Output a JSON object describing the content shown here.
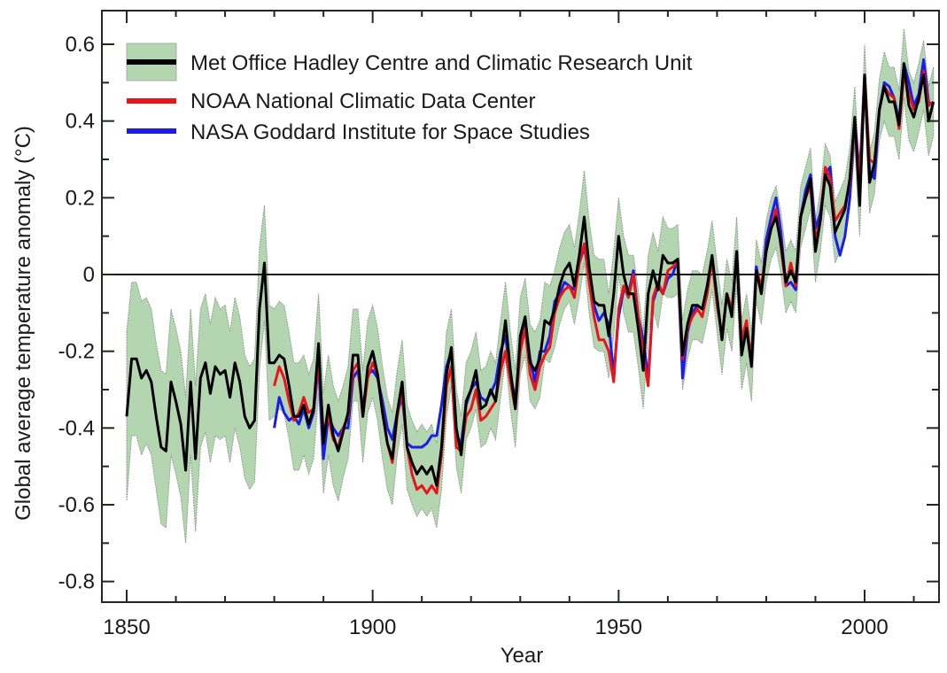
{
  "chart_data": {
    "type": "line",
    "title": "",
    "xlabel": "Year",
    "ylabel": "Global average temperature anomaly (°C)",
    "xlim": [
      1845,
      2016
    ],
    "ylim": [
      -0.85,
      0.68
    ],
    "x_ticks": [
      1850,
      1900,
      1950,
      2000
    ],
    "x_tick_labels": [
      "1850",
      "1900",
      "1950",
      "2000"
    ],
    "y_ticks": [
      0.6,
      0.4,
      0.2,
      0,
      -0.2,
      -0.4,
      -0.6,
      -0.8
    ],
    "y_tick_labels": [
      "0.6",
      "0.4",
      "0.2",
      "0",
      "-0.2",
      "-0.4",
      "-0.6",
      "-0.8"
    ],
    "zero_line": true,
    "grid": false,
    "legend_position": "top-left",
    "colors": {
      "hadcrut": "#000000",
      "noaa": "#e8141a",
      "nasa": "#1c1ce6",
      "uncertainty_fill": "#b3d6b0",
      "uncertainty_edge": "#8f9f8f"
    },
    "series": [
      {
        "name": "Met Office Hadley Centre and Climatic Research Unit",
        "key": "hadcrut",
        "start_year": 1850,
        "values": [
          -0.37,
          -0.22,
          -0.22,
          -0.27,
          -0.25,
          -0.28,
          -0.37,
          -0.45,
          -0.46,
          -0.28,
          -0.33,
          -0.39,
          -0.51,
          -0.28,
          -0.48,
          -0.27,
          -0.23,
          -0.31,
          -0.24,
          -0.26,
          -0.25,
          -0.32,
          -0.23,
          -0.28,
          -0.37,
          -0.4,
          -0.38,
          -0.09,
          0.03,
          -0.23,
          -0.23,
          -0.21,
          -0.22,
          -0.29,
          -0.37,
          -0.37,
          -0.34,
          -0.39,
          -0.35,
          -0.18,
          -0.44,
          -0.34,
          -0.42,
          -0.46,
          -0.41,
          -0.36,
          -0.21,
          -0.21,
          -0.37,
          -0.24,
          -0.2,
          -0.26,
          -0.36,
          -0.44,
          -0.48,
          -0.36,
          -0.28,
          -0.45,
          -0.49,
          -0.52,
          -0.5,
          -0.52,
          -0.5,
          -0.55,
          -0.45,
          -0.26,
          -0.19,
          -0.4,
          -0.47,
          -0.33,
          -0.3,
          -0.25,
          -0.35,
          -0.34,
          -0.3,
          -0.33,
          -0.22,
          -0.12,
          -0.25,
          -0.35,
          -0.16,
          -0.11,
          -0.23,
          -0.25,
          -0.22,
          -0.12,
          -0.13,
          -0.09,
          -0.03,
          0.01,
          0.03,
          -0.03,
          0.05,
          0.15,
          0.02,
          -0.07,
          -0.08,
          -0.08,
          -0.16,
          -0.05,
          0.1,
          0.0,
          -0.05,
          -0.05,
          -0.14,
          -0.25,
          -0.05,
          0.01,
          -0.04,
          0.05,
          0.03,
          0.03,
          0.04,
          -0.21,
          -0.13,
          -0.08,
          -0.08,
          -0.09,
          -0.03,
          0.05,
          -0.06,
          -0.17,
          -0.05,
          -0.11,
          0.06,
          -0.21,
          -0.14,
          -0.24,
          0.01,
          -0.05,
          0.06,
          0.12,
          0.15,
          0.08,
          -0.02,
          0.01,
          -0.02,
          0.15,
          0.2,
          0.25,
          0.06,
          0.14,
          0.26,
          0.23,
          0.11,
          0.14,
          0.17,
          0.25,
          0.41,
          0.18,
          0.52,
          0.24,
          0.29,
          0.43,
          0.49,
          0.45,
          0.45,
          0.39,
          0.55,
          0.44,
          0.41,
          0.46,
          0.52,
          0.4,
          0.45
        ],
        "uncertainty": [
          0.22,
          0.2,
          0.2,
          0.2,
          0.19,
          0.19,
          0.19,
          0.2,
          0.2,
          0.19,
          0.19,
          0.19,
          0.19,
          0.19,
          0.19,
          0.18,
          0.18,
          0.18,
          0.18,
          0.17,
          0.17,
          0.17,
          0.17,
          0.17,
          0.16,
          0.16,
          0.16,
          0.16,
          0.15,
          0.15,
          0.14,
          0.14,
          0.14,
          0.14,
          0.14,
          0.14,
          0.13,
          0.13,
          0.13,
          0.13,
          0.13,
          0.13,
          0.13,
          0.13,
          0.12,
          0.12,
          0.12,
          0.12,
          0.12,
          0.12,
          0.12,
          0.12,
          0.12,
          0.12,
          0.12,
          0.11,
          0.11,
          0.11,
          0.11,
          0.11,
          0.11,
          0.11,
          0.11,
          0.11,
          0.11,
          0.11,
          0.1,
          0.1,
          0.1,
          0.1,
          0.1,
          0.1,
          0.1,
          0.1,
          0.1,
          0.1,
          0.1,
          0.1,
          0.1,
          0.1,
          0.1,
          0.1,
          0.1,
          0.1,
          0.1,
          0.1,
          0.1,
          0.1,
          0.1,
          0.1,
          0.1,
          0.1,
          0.11,
          0.12,
          0.12,
          0.12,
          0.12,
          0.12,
          0.11,
          0.11,
          0.1,
          0.1,
          0.1,
          0.1,
          0.1,
          0.1,
          0.1,
          0.1,
          0.1,
          0.1,
          0.09,
          0.09,
          0.09,
          0.09,
          0.09,
          0.09,
          0.09,
          0.09,
          0.09,
          0.09,
          0.09,
          0.09,
          0.09,
          0.09,
          0.09,
          0.09,
          0.09,
          0.09,
          0.08,
          0.08,
          0.08,
          0.08,
          0.08,
          0.08,
          0.08,
          0.08,
          0.08,
          0.08,
          0.08,
          0.08,
          0.08,
          0.08,
          0.08,
          0.08,
          0.08,
          0.08,
          0.08,
          0.08,
          0.08,
          0.08,
          0.08,
          0.08,
          0.08,
          0.08,
          0.09,
          0.09,
          0.09,
          0.09,
          0.09,
          0.09,
          0.09,
          0.09,
          0.09,
          0.09,
          0.09,
          0.09,
          0.09
        ]
      },
      {
        "name": "NOAA National Climatic Data Center",
        "key": "noaa",
        "start_year": 1880,
        "values": [
          -0.29,
          -0.24,
          -0.27,
          -0.33,
          -0.38,
          -0.36,
          -0.32,
          -0.36,
          -0.35,
          -0.22,
          -0.41,
          -0.37,
          -0.43,
          -0.45,
          -0.4,
          -0.37,
          -0.25,
          -0.23,
          -0.37,
          -0.27,
          -0.23,
          -0.26,
          -0.36,
          -0.44,
          -0.49,
          -0.37,
          -0.3,
          -0.45,
          -0.52,
          -0.56,
          -0.55,
          -0.57,
          -0.55,
          -0.57,
          -0.47,
          -0.29,
          -0.24,
          -0.45,
          -0.46,
          -0.37,
          -0.35,
          -0.3,
          -0.38,
          -0.37,
          -0.35,
          -0.33,
          -0.25,
          -0.2,
          -0.28,
          -0.35,
          -0.2,
          -0.14,
          -0.26,
          -0.3,
          -0.24,
          -0.21,
          -0.19,
          -0.1,
          -0.06,
          -0.04,
          -0.03,
          -0.06,
          0.03,
          0.08,
          -0.02,
          -0.11,
          -0.17,
          -0.17,
          -0.2,
          -0.28,
          -0.09,
          -0.03,
          -0.06,
          0.0,
          -0.11,
          -0.21,
          -0.29,
          -0.06,
          -0.02,
          -0.05,
          0.01,
          0.02,
          0.03,
          -0.22,
          -0.14,
          -0.11,
          -0.09,
          -0.11,
          -0.05,
          0.04,
          -0.08,
          -0.16,
          -0.05,
          -0.09,
          0.05,
          -0.17,
          -0.12,
          -0.23,
          0.01,
          -0.03,
          0.06,
          0.12,
          0.17,
          0.07,
          -0.03,
          0.03,
          -0.03,
          0.15,
          0.2,
          0.23,
          0.09,
          0.14,
          0.28,
          0.25,
          0.14,
          0.16,
          0.18,
          0.24,
          0.39,
          0.24,
          0.52,
          0.3,
          0.29,
          0.43,
          0.49,
          0.47,
          0.46,
          0.38,
          0.52,
          0.47,
          0.43,
          0.45,
          0.53,
          0.44,
          0.45
        ]
      },
      {
        "name": "NASA Goddard Institute for Space Studies",
        "key": "nasa",
        "start_year": 1880,
        "values": [
          -0.4,
          -0.32,
          -0.36,
          -0.38,
          -0.37,
          -0.39,
          -0.35,
          -0.4,
          -0.36,
          -0.23,
          -0.48,
          -0.37,
          -0.4,
          -0.42,
          -0.4,
          -0.4,
          -0.27,
          -0.25,
          -0.35,
          -0.26,
          -0.25,
          -0.27,
          -0.33,
          -0.4,
          -0.43,
          -0.36,
          -0.32,
          -0.44,
          -0.45,
          -0.45,
          -0.45,
          -0.44,
          -0.42,
          -0.42,
          -0.34,
          -0.24,
          -0.2,
          -0.42,
          -0.44,
          -0.34,
          -0.3,
          -0.28,
          -0.32,
          -0.33,
          -0.31,
          -0.28,
          -0.2,
          -0.16,
          -0.26,
          -0.33,
          -0.18,
          -0.12,
          -0.22,
          -0.28,
          -0.2,
          -0.2,
          -0.16,
          -0.07,
          -0.05,
          -0.02,
          -0.03,
          -0.04,
          0.03,
          0.07,
          0.0,
          -0.08,
          -0.12,
          -0.1,
          -0.13,
          -0.26,
          -0.11,
          -0.04,
          -0.05,
          0.01,
          -0.11,
          -0.17,
          -0.27,
          -0.07,
          -0.03,
          -0.05,
          -0.01,
          0.0,
          0.04,
          -0.27,
          -0.15,
          -0.1,
          -0.08,
          -0.09,
          -0.03,
          0.04,
          -0.06,
          -0.17,
          -0.05,
          -0.1,
          0.06,
          -0.2,
          -0.14,
          -0.22,
          0.02,
          -0.05,
          0.09,
          0.15,
          0.2,
          0.11,
          -0.03,
          -0.02,
          -0.04,
          0.15,
          0.22,
          0.26,
          0.12,
          0.16,
          0.26,
          0.28,
          0.1,
          0.05,
          0.1,
          0.2,
          0.4,
          0.26,
          0.52,
          0.27,
          0.25,
          0.43,
          0.5,
          0.49,
          0.46,
          0.4,
          0.55,
          0.5,
          0.44,
          0.47,
          0.56,
          0.45,
          0.44
        ]
      }
    ]
  }
}
